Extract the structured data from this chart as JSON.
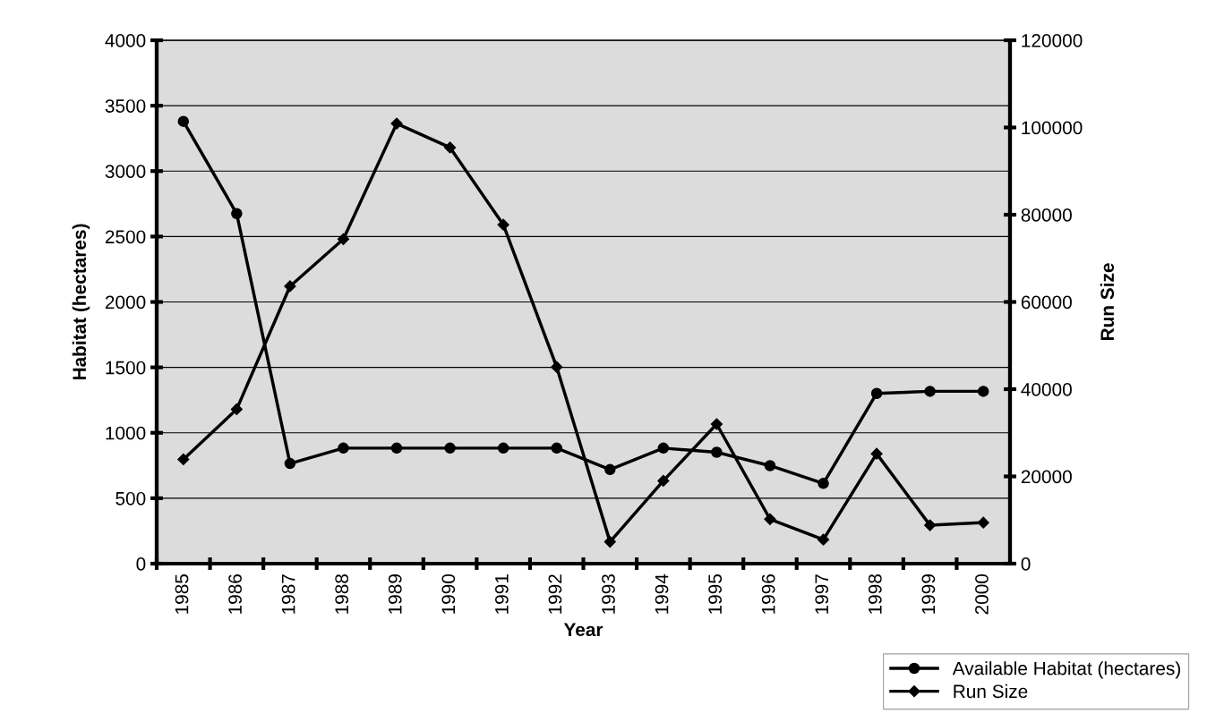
{
  "chart_data": {
    "type": "line",
    "xlabel": "Year",
    "ylabel": "Habitat (hectares)",
    "y2label": "Run Size",
    "categories": [
      "1985",
      "1986",
      "1987",
      "1988",
      "1989",
      "1990",
      "1991",
      "1992",
      "1993",
      "1994",
      "1995",
      "1996",
      "1997",
      "1998",
      "1999",
      "2000"
    ],
    "series": [
      {
        "name": "Available Habitat (hectares)",
        "color": "#000000",
        "marker": "circle",
        "values": [
          3380,
          2675,
          765,
          883,
          883,
          883,
          883,
          883,
          719,
          883,
          851,
          749,
          613,
          1301,
          1317,
          1317
        ]
      },
      {
        "name": "Run Size",
        "color": "#000000",
        "marker": "diamond",
        "axis": "y2",
        "values": [
          23900,
          35400,
          63600,
          74400,
          100900,
          95400,
          77700,
          45100,
          5000,
          19000,
          32000,
          10200,
          5500,
          25200,
          8800,
          9400
        ]
      }
    ],
    "ylim": [
      0,
      4000
    ],
    "yticks": [
      0,
      500,
      1000,
      1500,
      2000,
      2500,
      3000,
      3500,
      4000
    ],
    "y2lim": [
      0,
      120000
    ],
    "y2ticks": [
      0,
      20000,
      40000,
      60000,
      80000,
      100000,
      120000
    ],
    "grid": "y",
    "legend": "bottom right",
    "line_style": "solid"
  }
}
